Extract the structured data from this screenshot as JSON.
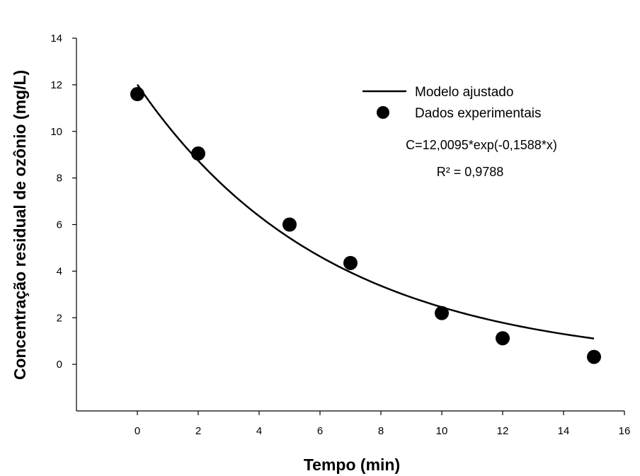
{
  "chart_data": {
    "type": "scatter",
    "xlabel": "Tempo (min)",
    "ylabel": "Concentração residual de ozônio (mg/L)",
    "xlim": [
      -2,
      16
    ],
    "ylim": [
      -2,
      14
    ],
    "xticks": [
      "0",
      "2",
      "4",
      "6",
      "8",
      "10",
      "12",
      "14",
      "16"
    ],
    "yticks": [
      "0",
      "2",
      "4",
      "6",
      "8",
      "10",
      "12",
      "14"
    ],
    "grid": false,
    "legend_position": "top-right",
    "series": [
      {
        "name": "Modelo ajustado",
        "kind": "line",
        "color": "#000000",
        "model": {
          "a": 12.0095,
          "b": -0.1588,
          "x_start": 0,
          "x_end": 15
        }
      },
      {
        "name": "Dados experimentais",
        "kind": "scatter",
        "color": "#000000",
        "x": [
          0,
          2,
          5,
          7,
          10,
          12,
          15
        ],
        "y": [
          11.6,
          9.05,
          6.0,
          4.35,
          2.2,
          1.12,
          0.32
        ]
      }
    ],
    "annotations": [
      "C=12,0095*exp(-0,1588*x)",
      "R² = 0,9788"
    ]
  }
}
